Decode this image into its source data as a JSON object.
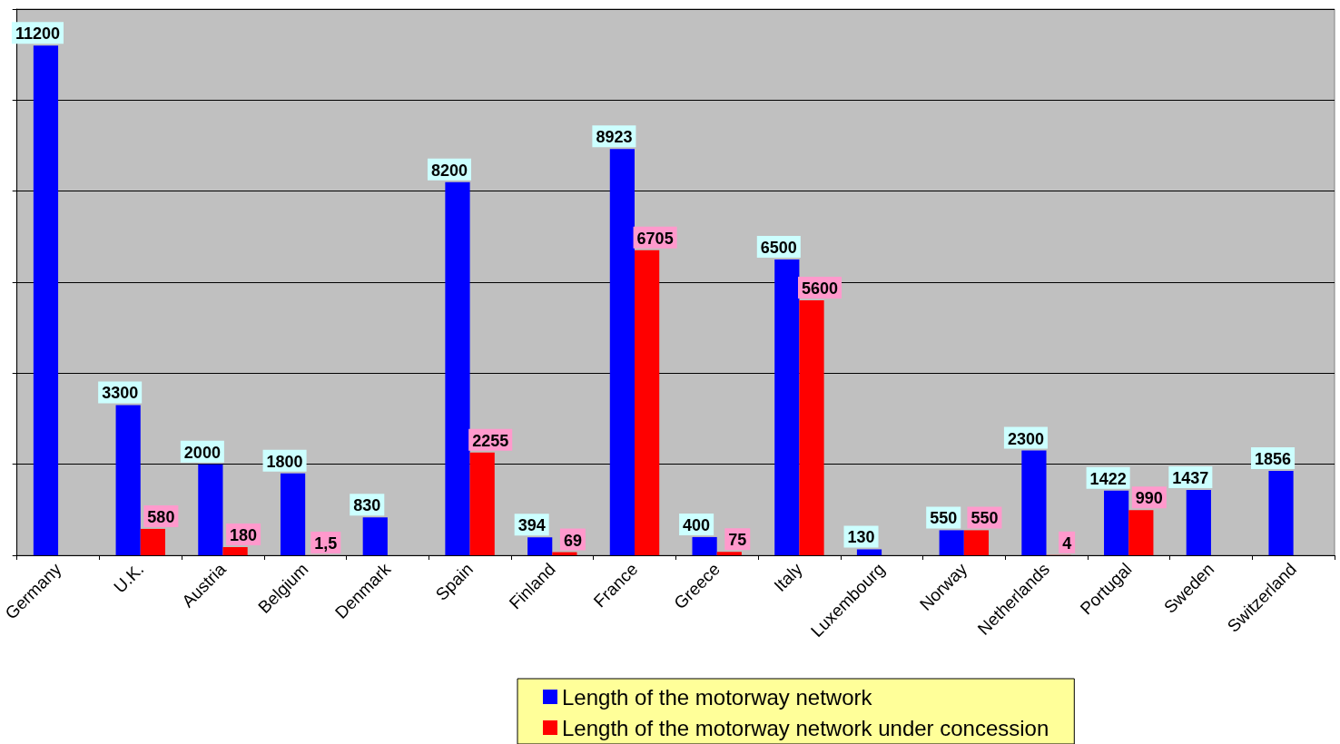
{
  "chart_data": {
    "type": "bar",
    "categories": [
      "Germany",
      "U.K.",
      "Austria",
      "Belgium",
      "Denmark",
      "Spain",
      "Finland",
      "France",
      "Greece",
      "Italy",
      "Luxembourg",
      "Norway",
      "Netherlands",
      "Portugal",
      "Sweden",
      "Switzerland"
    ],
    "series": [
      {
        "name": "Length of the motorway network",
        "color": "#0000ff",
        "values": [
          11200,
          3300,
          2000,
          1800,
          830,
          8200,
          394,
          8923,
          400,
          6500,
          130,
          550,
          2300,
          1422,
          1437,
          1856
        ],
        "value_labels": [
          "11200",
          "3300",
          "2000",
          "1800",
          "830",
          "8200",
          "394",
          "8923",
          "400",
          "6500",
          "130",
          "550",
          "2300",
          "1422",
          "1437",
          "1856"
        ]
      },
      {
        "name": "Length of the motorway network under concession",
        "color": "#ff0000",
        "values": [
          null,
          580,
          180,
          1.5,
          null,
          2255,
          69,
          6705,
          75,
          5600,
          null,
          550,
          4,
          990,
          null,
          null
        ],
        "value_labels": [
          null,
          "580",
          "180",
          "1,5",
          null,
          "2255",
          "69",
          "6705",
          "75",
          "5600",
          null,
          "550",
          "4",
          "990",
          null,
          null
        ]
      }
    ],
    "ylim": [
      0,
      12000
    ],
    "yticks": [
      {
        "value": 0,
        "label": null
      },
      {
        "value": 2000,
        "label": null
      },
      {
        "value": 4000,
        "label": null
      },
      {
        "value": 6000,
        "label": null
      },
      {
        "value": 8000,
        "label": null
      },
      {
        "value": 10000,
        "label": null
      },
      {
        "value": 12000,
        "label": null
      }
    ],
    "tick_labels": "x",
    "grid": "y",
    "legend": "bottom"
  }
}
